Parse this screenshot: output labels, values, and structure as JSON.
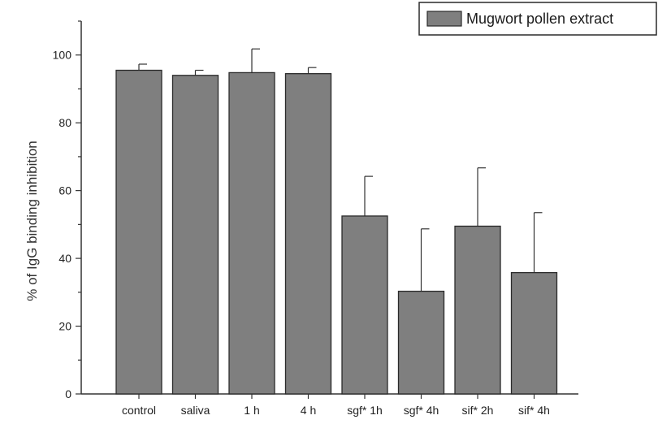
{
  "chart_data": {
    "type": "bar",
    "categories": [
      "control",
      "saliva",
      "1 h",
      "4 h",
      "sgf* 1h",
      "sgf* 4h",
      "sif* 2h",
      "sif* 4h"
    ],
    "series": [
      {
        "name": "Mugwort pollen extract",
        "values": [
          95.5,
          94,
          94.8,
          94.5,
          52.5,
          30.3,
          49.5,
          35.8
        ],
        "error_upper": [
          97.3,
          95.5,
          101.8,
          96.3,
          64.2,
          48.7,
          66.7,
          53.5
        ]
      }
    ],
    "ylabel": "% of IgG binding inhibition",
    "xlabel": "",
    "ylim": [
      0,
      110
    ],
    "yticks": [
      0,
      20,
      40,
      60,
      80,
      100
    ],
    "legend_position": "top-right",
    "colors": {
      "bar_fill": "#7f7f7f",
      "bar_stroke": "#2a2a2a",
      "axis": "#333333"
    }
  }
}
